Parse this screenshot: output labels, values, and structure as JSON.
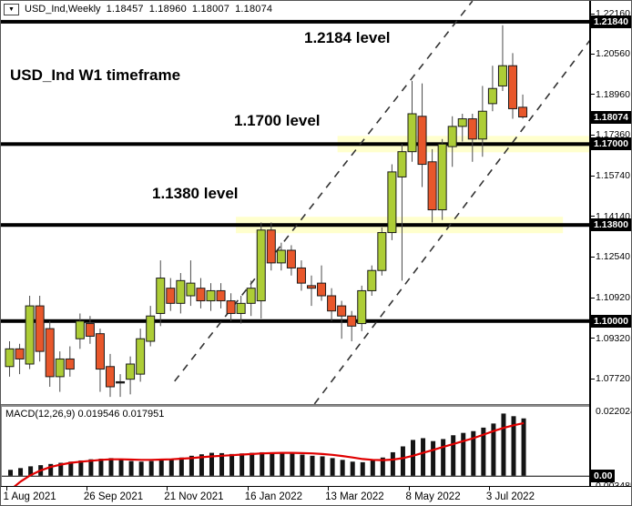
{
  "header": {
    "symbol": "USD_Ind,Weekly",
    "open": "1.18457",
    "high": "1.18960",
    "low": "1.18007",
    "close": "1.18074",
    "dropdown_icon": "▼"
  },
  "annotations": {
    "level_top": "1.2184 level",
    "timeframe": "USD_Ind W1 timeframe",
    "level_mid": "1.1700 level",
    "level_low": "1.1380 level"
  },
  "macd_panel": {
    "label": "MACD(12,26,9)",
    "macd_value": "0.019546",
    "signal_value": "0.017951",
    "axis_top": "0.022024",
    "axis_zero": "0.00",
    "axis_bottom": "0.003485"
  },
  "chart_data": {
    "type": "candlestick",
    "title": "USD_Ind Weekly chart with MACD(12,26,9)",
    "symbol": "USD_Ind",
    "timeframe": "W1",
    "current_quote": {
      "open": 1.18457,
      "high": 1.1896,
      "low": 1.18007,
      "close": 1.18074
    },
    "price_range": [
      1.067,
      1.2266
    ],
    "axis_ticks": [
      1.2216,
      1.2056,
      1.1896,
      1.1736,
      1.1574,
      1.1414,
      1.1254,
      1.1092,
      1.0932,
      1.0772
    ],
    "axis_badges": [
      {
        "value": 1.2184,
        "kind": "level"
      },
      {
        "value": 1.18074,
        "kind": "current-price"
      },
      {
        "value": 1.17,
        "kind": "level"
      },
      {
        "value": 1.138,
        "kind": "level"
      },
      {
        "value": 1.1,
        "kind": "level"
      }
    ],
    "levels": [
      {
        "price": 1.2184
      },
      {
        "price": 1.17,
        "band_from_index": 33,
        "band_to_index": 58
      },
      {
        "price": 1.138,
        "band_from_index": 22.9,
        "band_to_index": 55.4
      },
      {
        "price": 1.1
      }
    ],
    "channel": [
      {
        "from_index": 16.4,
        "from_price": 1.0762,
        "to_index": 46.0,
        "to_price": 1.2266
      },
      {
        "from_index": 30.3,
        "from_price": 1.0672,
        "to_index": 57.7,
        "to_price": 1.2112
      }
    ],
    "dates": {
      "labels": [
        "1 Aug 2021",
        "26 Sep 2021",
        "21 Nov 2021",
        "16 Jan 2022",
        "13 Mar 2022",
        "8 May 2022",
        "3 Jul 2022"
      ],
      "indices": [
        0,
        8,
        16,
        24,
        32,
        40,
        48
      ]
    },
    "candles": [
      [
        1.082,
        1.092,
        1.078,
        1.089
      ],
      [
        1.089,
        1.091,
        1.079,
        1.085
      ],
      [
        1.083,
        1.11,
        1.081,
        1.106
      ],
      [
        1.106,
        1.11,
        1.084,
        1.088
      ],
      [
        1.097,
        1.1,
        1.074,
        1.078
      ],
      [
        1.078,
        1.088,
        1.072,
        1.085
      ],
      [
        1.085,
        1.09,
        1.078,
        1.081
      ],
      [
        1.093,
        1.103,
        1.089,
        1.1
      ],
      [
        1.099,
        1.102,
        1.091,
        1.094
      ],
      [
        1.095,
        1.097,
        1.072,
        1.081
      ],
      [
        1.082,
        1.087,
        1.07,
        1.074
      ],
      [
        1.0757,
        1.079,
        1.07,
        1.076
      ],
      [
        1.077,
        1.086,
        1.071,
        1.083
      ],
      [
        1.079,
        1.097,
        1.076,
        1.093
      ],
      [
        1.092,
        1.106,
        1.09,
        1.102
      ],
      [
        1.103,
        1.124,
        1.098,
        1.117
      ],
      [
        1.113,
        1.117,
        1.104,
        1.107
      ],
      [
        1.107,
        1.119,
        1.103,
        1.116
      ],
      [
        1.11,
        1.124,
        1.106,
        1.115
      ],
      [
        1.113,
        1.117,
        1.105,
        1.108
      ],
      [
        1.108,
        1.115,
        1.104,
        1.112
      ],
      [
        1.112,
        1.115,
        1.105,
        1.108
      ],
      [
        1.108,
        1.111,
        1.1,
        1.103
      ],
      [
        1.103,
        1.11,
        1.099,
        1.107
      ],
      [
        1.107,
        1.116,
        1.102,
        1.113
      ],
      [
        1.108,
        1.139,
        1.101,
        1.136
      ],
      [
        1.136,
        1.139,
        1.12,
        1.123
      ],
      [
        1.123,
        1.131,
        1.12,
        1.128
      ],
      [
        1.128,
        1.13,
        1.118,
        1.121
      ],
      [
        1.121,
        1.124,
        1.112,
        1.115
      ],
      [
        1.114,
        1.118,
        1.106,
        1.113
      ],
      [
        1.115,
        1.122,
        1.108,
        1.11
      ],
      [
        1.11,
        1.113,
        1.1,
        1.104
      ],
      [
        1.106,
        1.108,
        1.093,
        1.102
      ],
      [
        1.102,
        1.104,
        1.092,
        1.098
      ],
      [
        1.099,
        1.114,
        1.096,
        1.112
      ],
      [
        1.112,
        1.122,
        1.11,
        1.12
      ],
      [
        1.12,
        1.137,
        1.118,
        1.135
      ],
      [
        1.135,
        1.162,
        1.132,
        1.159
      ],
      [
        1.157,
        1.17,
        1.116,
        1.167
      ],
      [
        1.167,
        1.195,
        1.163,
        1.182
      ],
      [
        1.181,
        1.194,
        1.153,
        1.162
      ],
      [
        1.163,
        1.168,
        1.139,
        1.144
      ],
      [
        1.144,
        1.172,
        1.14,
        1.17
      ],
      [
        1.169,
        1.181,
        1.161,
        1.177
      ],
      [
        1.177,
        1.182,
        1.171,
        1.18
      ],
      [
        1.18,
        1.182,
        1.163,
        1.172
      ],
      [
        1.172,
        1.193,
        1.165,
        1.183
      ],
      [
        1.186,
        1.201,
        1.183,
        1.192
      ],
      [
        1.193,
        1.217,
        1.191,
        1.201
      ],
      [
        1.201,
        1.206,
        1.18,
        1.184
      ],
      [
        1.18457,
        1.1896,
        1.18007,
        1.18074
      ]
    ],
    "macd": {
      "histogram": [
        0.002,
        0.0026,
        0.0032,
        0.0036,
        0.004,
        0.0044,
        0.0048,
        0.0052,
        0.0056,
        0.0058,
        0.006,
        0.0055,
        0.005,
        0.0048,
        0.005,
        0.0055,
        0.0058,
        0.0062,
        0.0068,
        0.0073,
        0.0078,
        0.0077,
        0.0074,
        0.0076,
        0.0078,
        0.008,
        0.0079,
        0.0077,
        0.0075,
        0.0072,
        0.0068,
        0.0066,
        0.006,
        0.0054,
        0.0048,
        0.0046,
        0.0052,
        0.0062,
        0.008,
        0.01,
        0.0122,
        0.0128,
        0.0118,
        0.0125,
        0.0138,
        0.0146,
        0.0152,
        0.0164,
        0.0178,
        0.0212,
        0.0203,
        0.019546
      ],
      "signal": [
        -0.0048,
        -0.002,
        0.0002,
        0.0018,
        0.003,
        0.0038,
        0.0044,
        0.0048,
        0.0051,
        0.0054,
        0.0056,
        0.0056,
        0.0055,
        0.0054,
        0.0054,
        0.0055,
        0.0056,
        0.0058,
        0.006,
        0.0063,
        0.0066,
        0.0068,
        0.007,
        0.0072,
        0.0074,
        0.0076,
        0.0077,
        0.0078,
        0.0078,
        0.0077,
        0.0076,
        0.0074,
        0.0071,
        0.0067,
        0.0062,
        0.0057,
        0.0054,
        0.0053,
        0.0055,
        0.006,
        0.0068,
        0.0078,
        0.0088,
        0.0098,
        0.0108,
        0.0118,
        0.0128,
        0.014,
        0.0152,
        0.0163,
        0.0172,
        0.017951
      ],
      "value_range": [
        -0.0035,
        0.0235
      ]
    },
    "colors": {
      "up_body": "#adcd36",
      "down_body": "#e8572b",
      "body_border": "#1a1a1a",
      "wick": "#4a4a4a",
      "level_line": "#000000",
      "band": "#ffffc0",
      "channel": "#333333",
      "histogram": "#141414",
      "signal_line": "#e00000"
    }
  }
}
